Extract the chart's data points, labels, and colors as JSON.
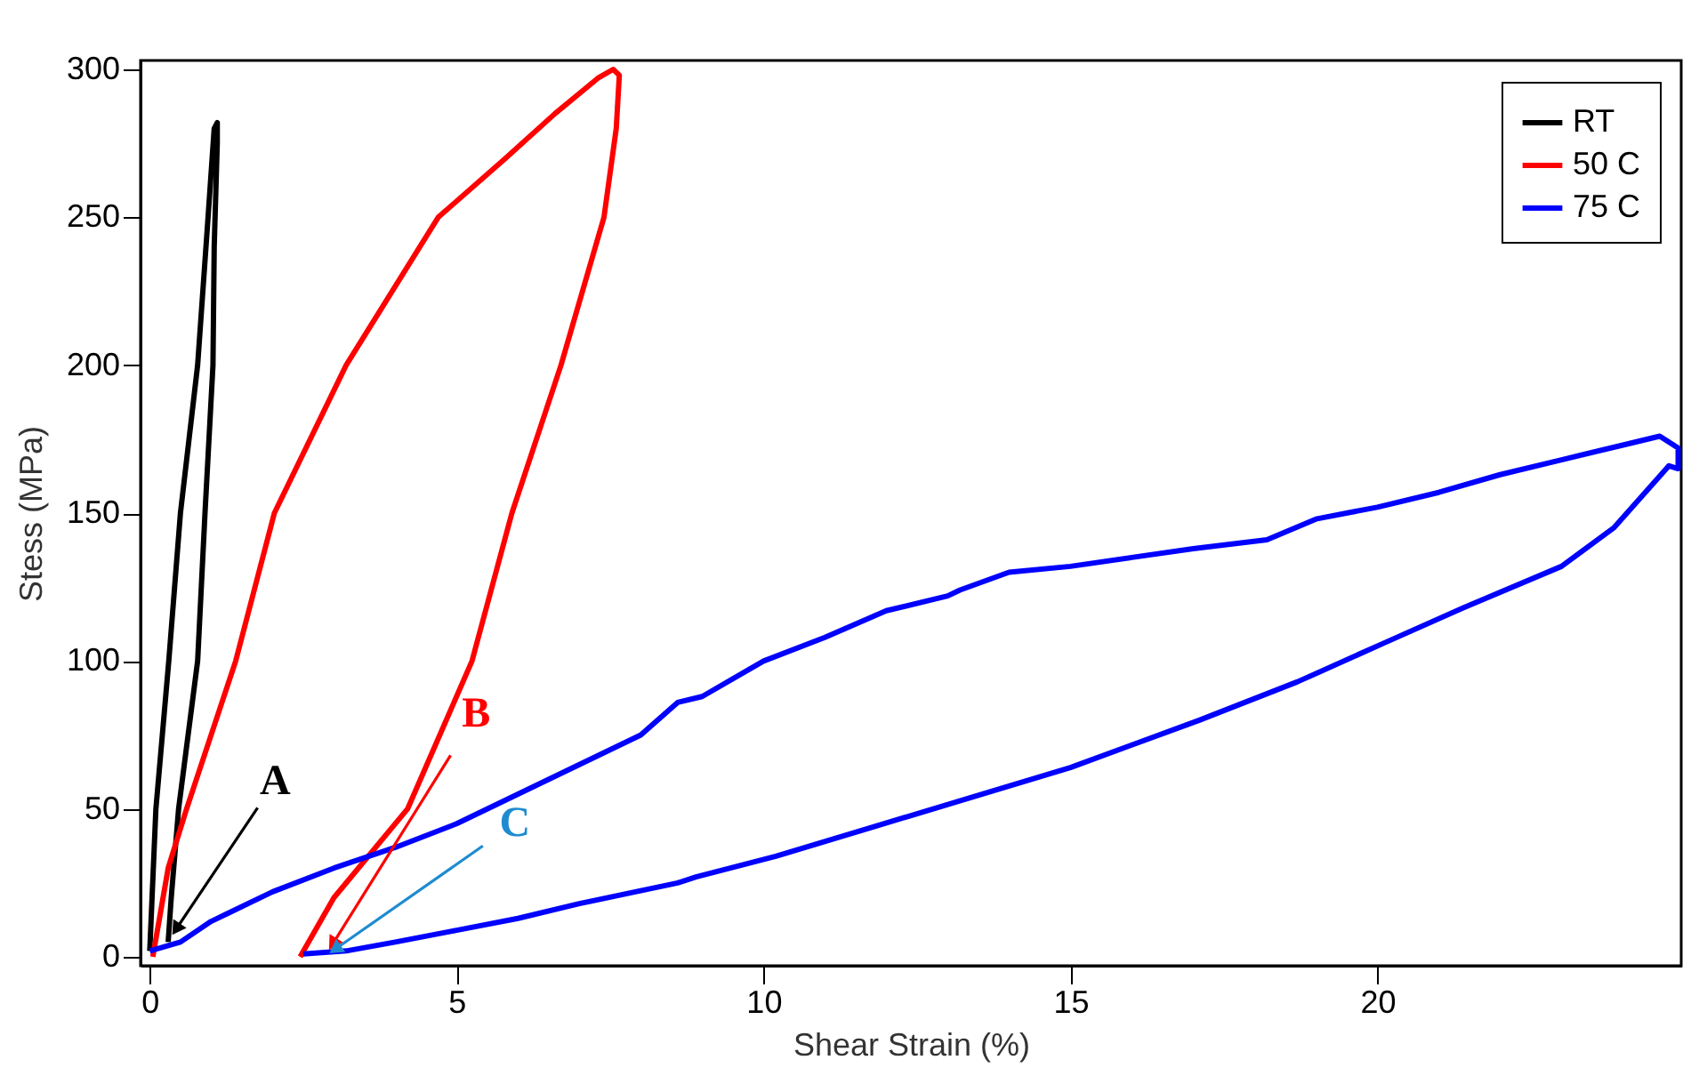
{
  "chart_data": {
    "type": "line",
    "xlabel": "Shear Strain (%)",
    "ylabel": "Stess (MPa)",
    "xlim": [
      -0.15,
      24.95
    ],
    "ylim": [
      -3,
      303
    ],
    "xticks": [
      0,
      5,
      10,
      15,
      20
    ],
    "yticks": [
      0,
      50,
      100,
      150,
      200,
      250,
      300
    ],
    "grid": false,
    "legend": "top right",
    "marker": "none",
    "line_style": "solid",
    "series": [
      {
        "name": "RT",
        "color": "#000000",
        "x": [
          0,
          0.1,
          0.31,
          0.5,
          0.78,
          0.95,
          1.05,
          1.1,
          1.1,
          1.05,
          1.03,
          0.9,
          0.78,
          0.47,
          0.35,
          0.3
        ],
        "values": [
          2,
          50,
          100,
          150,
          200,
          250,
          280,
          282,
          275,
          240,
          200,
          150,
          100,
          50,
          20,
          5
        ]
      },
      {
        "name": "50 C",
        "color": "#ff0000",
        "x": [
          0.05,
          0.3,
          0.6,
          1.4,
          2.03,
          3.2,
          4.7,
          5.8,
          6.6,
          7.3,
          7.55,
          7.65,
          7.6,
          7.4,
          6.7,
          5.9,
          5.25,
          4.2,
          3.0,
          2.45
        ],
        "values": [
          0,
          30,
          50,
          100,
          150,
          200,
          250,
          270,
          285,
          297,
          300,
          298,
          280,
          250,
          200,
          150,
          100,
          50,
          20,
          0
        ]
      },
      {
        "name": "75 C",
        "color": "#0000ff",
        "x": [
          0,
          0.5,
          1,
          2,
          3,
          4,
          5,
          6,
          7,
          8,
          8.6,
          9,
          10,
          11,
          12,
          13,
          13.2,
          14,
          15,
          16,
          17,
          18.2,
          19,
          20,
          21,
          22,
          23,
          24,
          24.6,
          24.9,
          24.9,
          24.75,
          23.85,
          23,
          21.4,
          20.1,
          18.7,
          17.1,
          15,
          13.4,
          11.8,
          10.2,
          8.9,
          8.6,
          7,
          6,
          5,
          4,
          3.2,
          2.5
        ],
        "values": [
          2,
          5,
          12,
          22,
          30,
          37,
          45,
          55,
          65,
          75,
          86,
          88,
          100,
          108,
          117,
          122,
          124,
          130,
          132,
          135,
          138,
          141,
          148,
          152,
          157,
          163,
          168,
          173,
          176,
          172,
          165,
          166,
          145,
          132,
          118,
          106,
          93,
          80,
          64,
          54,
          44,
          34,
          27,
          25,
          18,
          13,
          9,
          5,
          2,
          1
        ]
      }
    ],
    "annotations": [
      {
        "text": "A",
        "x": 0.45,
        "y": 10
      },
      {
        "text": "B",
        "x": 3.0,
        "y": 5
      },
      {
        "text": "C",
        "x": 3.05,
        "y": 3
      }
    ]
  }
}
